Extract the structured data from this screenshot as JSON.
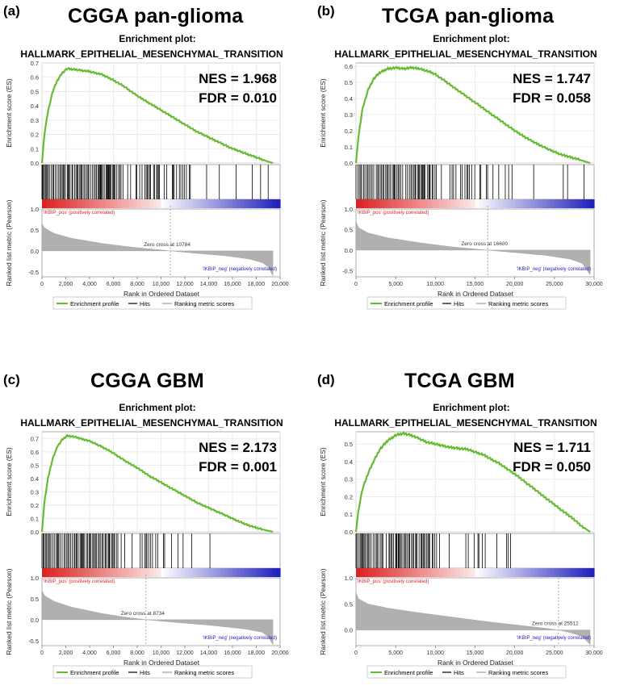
{
  "figure": {
    "panels": [
      {
        "letter": "(a)",
        "heading": "CGGA pan-glioma"
      },
      {
        "letter": "(b)",
        "heading": "TCGA pan-glioma"
      },
      {
        "letter": "(c)",
        "heading": "CGGA GBM"
      },
      {
        "letter": "(d)",
        "heading": "TCGA GBM"
      }
    ]
  },
  "chart_data": [
    {
      "type": "line",
      "title": "Enrichment plot:",
      "subtitle": "HALLMARK_EPITHELIAL_MESENCHYMAL_TRANSITION",
      "nes_text": "NES = 1.968",
      "fdr_text": "FDR = 0.010",
      "ylabel_top": "Enrichment score (ES)",
      "ylabel_bottom": "Ranked list metric (Pearson)",
      "xlabel": "Rank in Ordered Dataset",
      "xlim": [
        0,
        20000
      ],
      "xticks": [
        "0",
        "2,000",
        "4,000",
        "6,000",
        "8,000",
        "10,000",
        "12,000",
        "14,000",
        "16,000",
        "18,000",
        "20,000"
      ],
      "ylim_es": [
        0,
        0.7
      ],
      "es_ticks": [
        "0.0",
        "0.1",
        "0.2",
        "0.3",
        "0.4",
        "0.5",
        "0.6",
        "0.7"
      ],
      "metric_ticks": [
        "1.0",
        "0.5",
        "0.0",
        "-0.5"
      ],
      "metric_range": [
        -0.62,
        1.0
      ],
      "n_total": 19400,
      "zero_cross": 10784,
      "zero_cross_text": "Zero cross at 10784",
      "pos_label": "'IKBIP_pos' (positively correlated)",
      "neg_label": "'IKBIP_neg' (negatively correlated)",
      "es_curve": {
        "x": [
          0,
          200,
          500,
          900,
          1300,
          1700,
          2100,
          2600,
          3200,
          4000,
          5000,
          6000,
          7000,
          8000,
          9000,
          10000,
          11000,
          12000,
          13000,
          14000,
          15000,
          16000,
          17000,
          18000,
          18800,
          19400
        ],
        "y": [
          0,
          0.2,
          0.36,
          0.5,
          0.58,
          0.63,
          0.66,
          0.655,
          0.65,
          0.64,
          0.62,
          0.58,
          0.53,
          0.47,
          0.42,
          0.37,
          0.32,
          0.27,
          0.22,
          0.18,
          0.14,
          0.1,
          0.07,
          0.04,
          0.015,
          0
        ]
      },
      "hits_density": [
        0.95,
        0.6,
        0.18
      ],
      "metric_curve": {
        "x": [
          0,
          200,
          1000,
          2500,
          5000,
          7500,
          10784,
          13000,
          15500,
          17500,
          18500,
          19000,
          19400
        ],
        "y": [
          0.65,
          0.55,
          0.42,
          0.3,
          0.18,
          0.09,
          0,
          -0.06,
          -0.12,
          -0.2,
          -0.28,
          -0.38,
          -0.6
        ]
      },
      "legend": [
        "Enrichment profile",
        "Hits",
        "Ranking metric scores"
      ],
      "colors": {
        "es": "#66bb33",
        "hits": "#000000",
        "metric": "#b0b0b0",
        "pos": "#dd2222",
        "neg": "#2222bb"
      }
    },
    {
      "type": "line",
      "title": "Enrichment plot:",
      "subtitle": "HALLMARK_EPITHELIAL_MESENCHYMAL_TRANSITION",
      "nes_text": "NES = 1.747",
      "fdr_text": "FDR = 0.058",
      "ylabel_top": "Enrichment score (ES)",
      "ylabel_bottom": "Ranked list metric (Pearson)",
      "xlabel": "Rank in Ordered Dataset",
      "xlim": [
        0,
        30000
      ],
      "xticks": [
        "0",
        "5,000",
        "10,000",
        "15,000",
        "20,000",
        "25,000",
        "30,000"
      ],
      "ylim_es": [
        0,
        0.62
      ],
      "es_ticks": [
        "0.0",
        "0.1",
        "0.2",
        "0.3",
        "0.4",
        "0.5",
        "0.6"
      ],
      "metric_ticks": [
        "1.0",
        "0.5",
        "0.0",
        "-0.5"
      ],
      "metric_range": [
        -0.65,
        1.0
      ],
      "n_total": 29500,
      "zero_cross": 16600,
      "zero_cross_text": "Zero cross at 16600",
      "pos_label": "'IKBIP_pos' (positively correlated)",
      "neg_label": "'IKBIP_neg' (negatively correlated)",
      "es_curve": {
        "x": [
          0,
          300,
          800,
          1500,
          2200,
          3000,
          4000,
          5000,
          6000,
          7000,
          8000,
          9000,
          10000,
          12000,
          14000,
          16000,
          18000,
          20000,
          22000,
          24000,
          26000,
          27500,
          28500,
          29500
        ],
        "y": [
          0,
          0.16,
          0.33,
          0.45,
          0.52,
          0.56,
          0.585,
          0.59,
          0.585,
          0.59,
          0.585,
          0.57,
          0.55,
          0.48,
          0.41,
          0.34,
          0.27,
          0.2,
          0.14,
          0.09,
          0.05,
          0.03,
          0.015,
          0
        ]
      },
      "hits_density": [
        0.9,
        0.55,
        0.2
      ],
      "metric_curve": {
        "x": [
          0,
          300,
          1500,
          4000,
          8000,
          12000,
          16600,
          20000,
          24000,
          27000,
          28500,
          29500
        ],
        "y": [
          0.7,
          0.55,
          0.42,
          0.3,
          0.18,
          0.08,
          0,
          -0.06,
          -0.13,
          -0.22,
          -0.32,
          -0.6
        ]
      },
      "legend": [
        "Enrichment profile",
        "Hits",
        "Ranking metric scores"
      ],
      "colors": {
        "es": "#66bb33",
        "hits": "#000000",
        "metric": "#b0b0b0",
        "pos": "#dd2222",
        "neg": "#2222bb"
      }
    },
    {
      "type": "line",
      "title": "Enrichment plot:",
      "subtitle": "HALLMARK_EPITHELIAL_MESENCHYMAL_TRANSITION",
      "nes_text": "NES = 2.173",
      "fdr_text": "FDR = 0.001",
      "ylabel_top": "Enrichment score (ES)",
      "ylabel_bottom": "Ranked list metric (Pearson)",
      "xlabel": "Rank in Ordered Dataset",
      "xlim": [
        0,
        20000
      ],
      "xticks": [
        "0",
        "2,000",
        "4,000",
        "6,000",
        "8,000",
        "10,000",
        "12,000",
        "14,000",
        "16,000",
        "18,000",
        "20,000"
      ],
      "ylim_es": [
        0,
        0.75
      ],
      "es_ticks": [
        "0.0",
        "0.1",
        "0.2",
        "0.3",
        "0.4",
        "0.5",
        "0.6",
        "0.7"
      ],
      "metric_ticks": [
        "1.0",
        "0.5",
        "0.0",
        "-0.5"
      ],
      "metric_range": [
        -0.62,
        1.0
      ],
      "n_total": 19400,
      "zero_cross": 8734,
      "zero_cross_text": "Zero cross at 8734",
      "pos_label": "'IKBIP_pos' (positively correlated)",
      "neg_label": "'IKBIP_neg' (negatively correlated)",
      "es_curve": {
        "x": [
          0,
          200,
          500,
          900,
          1300,
          1700,
          2100,
          2600,
          3200,
          4000,
          5000,
          6000,
          7000,
          8000,
          9000,
          10000,
          11000,
          12000,
          13000,
          14000,
          15000,
          16000,
          17000,
          18000,
          18800,
          19400
        ],
        "y": [
          0,
          0.22,
          0.4,
          0.55,
          0.64,
          0.69,
          0.72,
          0.715,
          0.7,
          0.68,
          0.64,
          0.59,
          0.53,
          0.48,
          0.42,
          0.37,
          0.32,
          0.27,
          0.22,
          0.18,
          0.14,
          0.1,
          0.06,
          0.03,
          0.012,
          0
        ]
      },
      "hits_density": [
        0.95,
        0.55,
        0.15
      ],
      "metric_curve": {
        "x": [
          0,
          200,
          1000,
          2500,
          5000,
          7000,
          8734,
          11000,
          14000,
          17000,
          18500,
          19000,
          19400
        ],
        "y": [
          0.7,
          0.58,
          0.44,
          0.3,
          0.15,
          0.06,
          0,
          -0.06,
          -0.13,
          -0.22,
          -0.3,
          -0.4,
          -0.6
        ]
      },
      "legend": [
        "Enrichment profile",
        "Hits",
        "Ranking metric scores"
      ],
      "colors": {
        "es": "#66bb33",
        "hits": "#000000",
        "metric": "#b0b0b0",
        "pos": "#dd2222",
        "neg": "#2222bb"
      }
    },
    {
      "type": "line",
      "title": "Enrichment plot:",
      "subtitle": "HALLMARK_EPITHELIAL_MESENCHYMAL_TRANSITION",
      "nes_text": "NES = 1.711",
      "fdr_text": "FDR = 0.050",
      "ylabel_top": "Enrichment score (ES)",
      "ylabel_bottom": "Ranked list metric (Pearson)",
      "xlabel": "Rank in Ordered Dataset",
      "xlim": [
        0,
        30000
      ],
      "xticks": [
        "0",
        "5,000",
        "10,000",
        "15,000",
        "20,000",
        "25,000",
        "30,000"
      ],
      "ylim_es": [
        0,
        0.57
      ],
      "es_ticks": [
        "0.0",
        "0.1",
        "0.2",
        "0.3",
        "0.4",
        "0.5"
      ],
      "metric_ticks": [
        "1.0",
        "0.5",
        "0.0"
      ],
      "metric_range": [
        -0.3,
        1.0
      ],
      "n_total": 29500,
      "zero_cross": 25512,
      "zero_cross_text": "Zero cross at 25512",
      "pos_label": "'IKBIP_pos' (positively correlated)",
      "neg_label": "'IKBIP_neg' (negatively correlated)",
      "es_curve": {
        "x": [
          0,
          300,
          800,
          1500,
          2200,
          3000,
          4000,
          5000,
          6000,
          7000,
          8000,
          9000,
          10000,
          12000,
          14000,
          16000,
          18000,
          20000,
          22000,
          24000,
          26000,
          27500,
          28500,
          29500
        ],
        "y": [
          0,
          0.12,
          0.24,
          0.33,
          0.4,
          0.47,
          0.52,
          0.55,
          0.56,
          0.55,
          0.53,
          0.51,
          0.5,
          0.48,
          0.47,
          0.44,
          0.39,
          0.33,
          0.26,
          0.19,
          0.12,
          0.07,
          0.03,
          0
        ]
      },
      "hits_density": [
        0.9,
        0.5,
        0.1
      ],
      "metric_curve": {
        "x": [
          0,
          300,
          1500,
          4000,
          8000,
          12000,
          16000,
          20000,
          23500,
          25512,
          27000,
          28500,
          29500
        ],
        "y": [
          0.72,
          0.6,
          0.5,
          0.42,
          0.33,
          0.25,
          0.17,
          0.1,
          0.04,
          0,
          -0.05,
          -0.12,
          -0.28
        ]
      },
      "legend": [
        "Enrichment profile",
        "Hits",
        "Ranking metric scores"
      ],
      "colors": {
        "es": "#66bb33",
        "hits": "#000000",
        "metric": "#b0b0b0",
        "pos": "#dd2222",
        "neg": "#2222bb"
      }
    }
  ]
}
